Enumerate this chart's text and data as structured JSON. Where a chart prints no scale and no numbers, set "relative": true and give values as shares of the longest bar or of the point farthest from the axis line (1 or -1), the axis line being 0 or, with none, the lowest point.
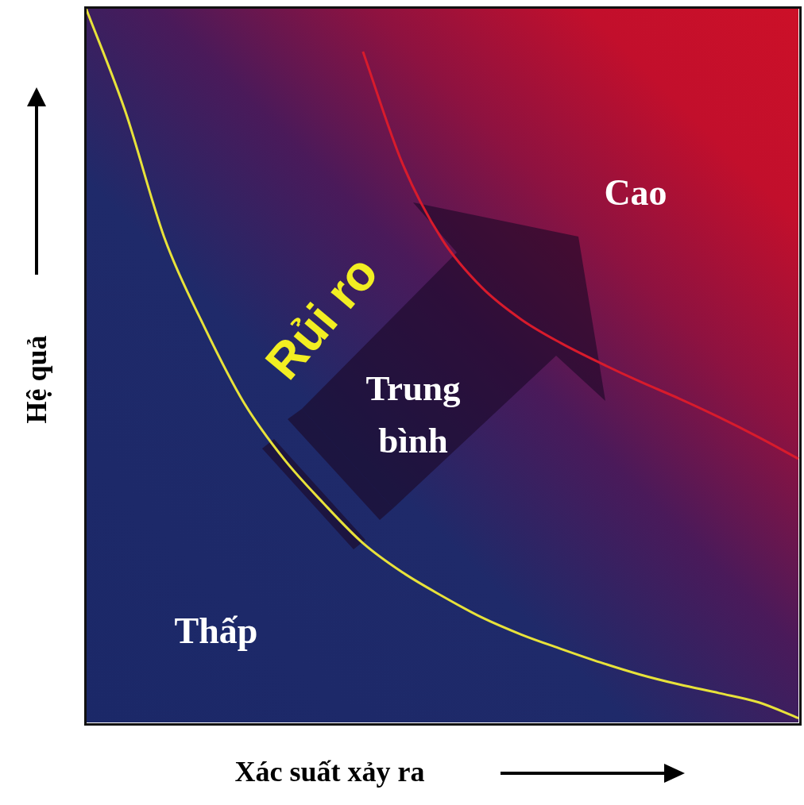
{
  "chart_data": {
    "type": "line",
    "relative": true,
    "xlabel": "Xác suất xảy ra",
    "ylabel": "Hệ quả",
    "categories": [
      null,
      null,
      null,
      null,
      null,
      null,
      null,
      null,
      null,
      null,
      null,
      null,
      null,
      null,
      null,
      null,
      null,
      null,
      null
    ],
    "series": [
      {
        "color": "#e8e23a",
        "values": [
          1,
          0.855,
          0.676,
          0.553,
          0.447,
          0.369,
          0.307,
          0.251,
          0.21,
          0.177,
          0.147,
          0.123,
          0.103,
          0.084,
          0.067,
          0.053,
          0.041,
          0.028,
          0.006
        ]
      },
      {
        "color": "#d81b2c",
        "values": [
          null,
          null,
          null,
          null,
          null,
          null,
          null,
          0.939,
          0.782,
          0.676,
          0.609,
          0.564,
          0.531,
          0.503,
          0.477,
          0.453,
          0.427,
          0.399,
          0.369
        ]
      }
    ],
    "annotations": [
      "Cao",
      "Trung bình",
      "Rủi ro",
      "Thấp"
    ],
    "legend": false,
    "marker": "none"
  }
}
